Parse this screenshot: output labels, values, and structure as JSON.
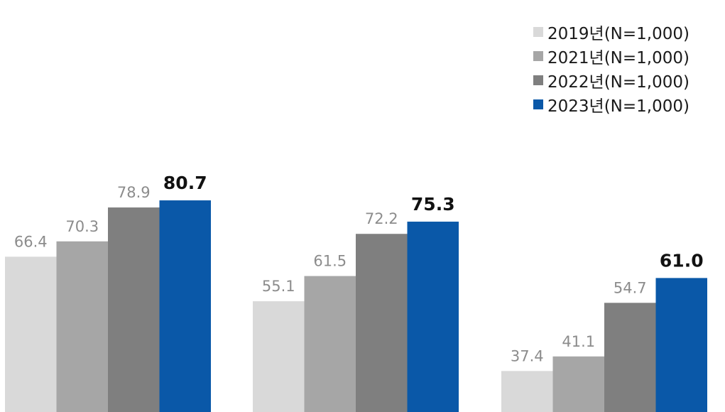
{
  "chart_data": {
    "type": "bar",
    "categories": [
      "",
      "",
      ""
    ],
    "series": [
      {
        "name": "2019년(N=1,000)",
        "color": "#d9d9d9",
        "values": [
          66.4,
          55.1,
          37.4
        ]
      },
      {
        "name": "2021년(N=1,000)",
        "color": "#a6a6a6",
        "values": [
          70.3,
          61.5,
          41.1
        ]
      },
      {
        "name": "2022년(N=1,000)",
        "color": "#7f7f7f",
        "values": [
          78.9,
          72.2,
          54.7
        ]
      },
      {
        "name": "2023년(N=1,000)",
        "color": "#0a58a8",
        "values": [
          80.7,
          75.3,
          61.0
        ]
      }
    ],
    "value_labels": [
      [
        "66.4",
        "55.1",
        "37.4"
      ],
      [
        "70.3",
        "61.5",
        "41.1"
      ],
      [
        "78.9",
        "72.2",
        "54.7"
      ],
      [
        "80.7",
        "75.3",
        "61.0"
      ]
    ],
    "label_colors": [
      "#8c8c8c",
      "#8c8c8c",
      "#8c8c8c",
      "#111111"
    ],
    "highlight_series": "2023년(N=1,000)",
    "title": "",
    "xlabel": "",
    "ylabel": "",
    "ylim": [
      27,
      100
    ],
    "grid": false,
    "legend": "top-right"
  }
}
